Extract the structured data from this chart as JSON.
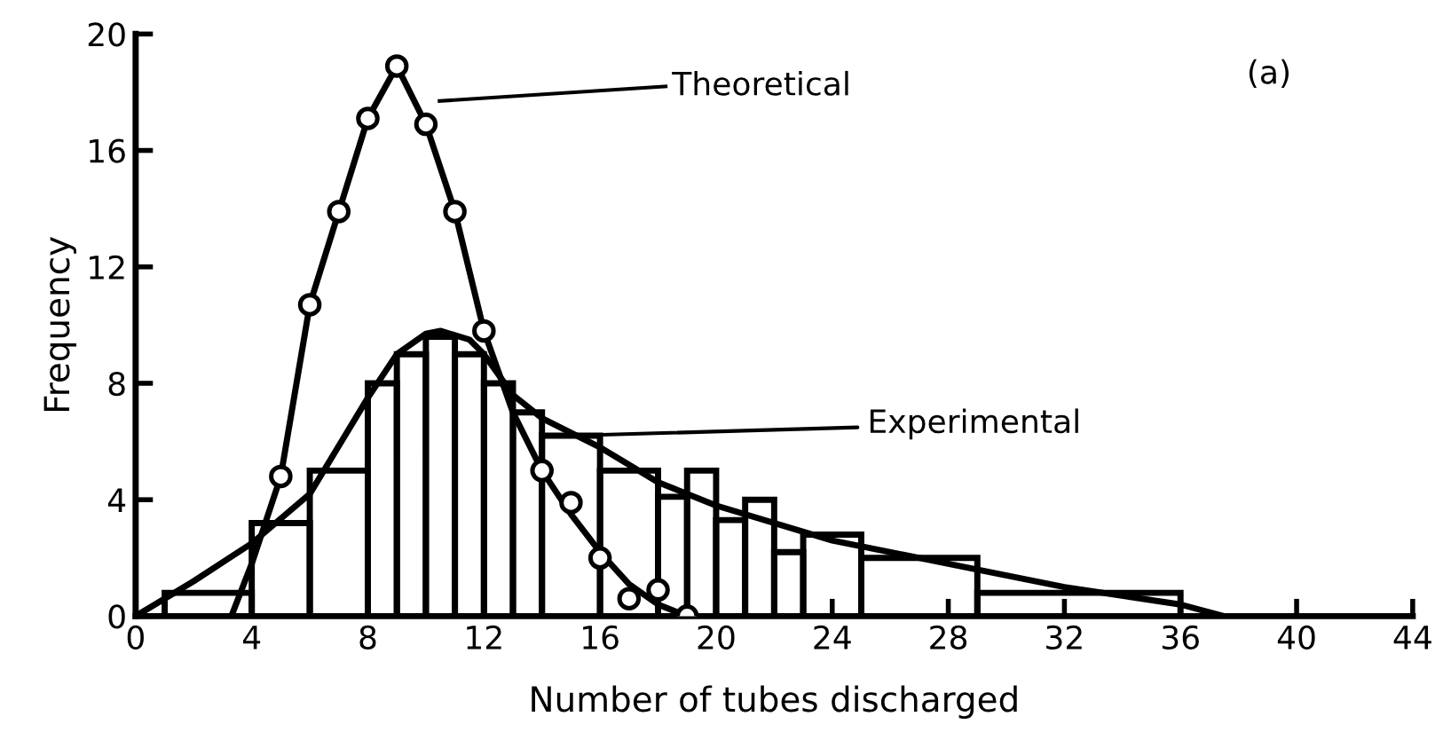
{
  "chart_data": {
    "type": "histogram",
    "xlabel": "Number of tubes discharged",
    "ylabel": "Frequency",
    "xlim": [
      0,
      44
    ],
    "xticks": [
      0,
      4,
      8,
      12,
      16,
      20,
      24,
      28,
      32,
      36,
      40,
      44
    ],
    "ylim": [
      0,
      20
    ],
    "yticks": [
      0,
      4,
      8,
      12,
      16,
      20
    ],
    "grid": false,
    "legend": false,
    "series": [
      {
        "color": "#000000",
        "bins": [
          1,
          4,
          6,
          8,
          9,
          10,
          11,
          12,
          13,
          14,
          16,
          18,
          19,
          20,
          21,
          22,
          23,
          25,
          29,
          36
        ],
        "values": [
          0.8,
          3.2,
          5.0,
          8.0,
          9.0,
          9.6,
          9.0,
          8.0,
          7.0,
          6.2,
          5.0,
          4.1,
          5.0,
          3.3,
          4.0,
          2.2,
          2.8,
          2.0,
          0.8
        ]
      },
      {
        "type": "line",
        "color": "#000000",
        "marker": "none",
        "x": [
          0,
          2,
          4,
          6,
          8,
          9,
          10,
          10.5,
          11.5,
          12,
          13,
          14,
          16,
          18,
          20,
          24,
          28,
          32,
          36,
          37.5
        ],
        "values": [
          0,
          1.2,
          2.5,
          4.2,
          7.5,
          9.0,
          9.7,
          9.8,
          9.5,
          9.0,
          7.6,
          6.8,
          5.8,
          4.6,
          3.8,
          2.6,
          1.8,
          1.0,
          0.4,
          0
        ]
      },
      {
        "type": "line",
        "color": "#000000",
        "marker": "none",
        "x": [
          3.3,
          4,
          5,
          6,
          7,
          8,
          9,
          10,
          11,
          12,
          13,
          14,
          15,
          16,
          17,
          18,
          19
        ],
        "values": [
          0,
          1.8,
          4.8,
          10.7,
          13.9,
          17.1,
          18.9,
          16.9,
          13.9,
          9.8,
          7.0,
          5.0,
          3.5,
          2.2,
          1.1,
          0.4,
          0
        ]
      },
      {
        "type": "scatter",
        "color": "#000000",
        "marker": "circle",
        "x": [
          5,
          6,
          7,
          8,
          9,
          10,
          11,
          12,
          14,
          15,
          16,
          17,
          18,
          19
        ],
        "values": [
          4.8,
          10.7,
          13.9,
          17.1,
          18.9,
          16.9,
          13.9,
          9.8,
          5.0,
          3.9,
          2.0,
          0.6,
          0.9,
          0
        ]
      }
    ],
    "annotations": [
      "Theoretical",
      {
        "text": "Experimental",
        "x": 15,
        "y": 6.2
      },
      "(a)"
    ]
  }
}
